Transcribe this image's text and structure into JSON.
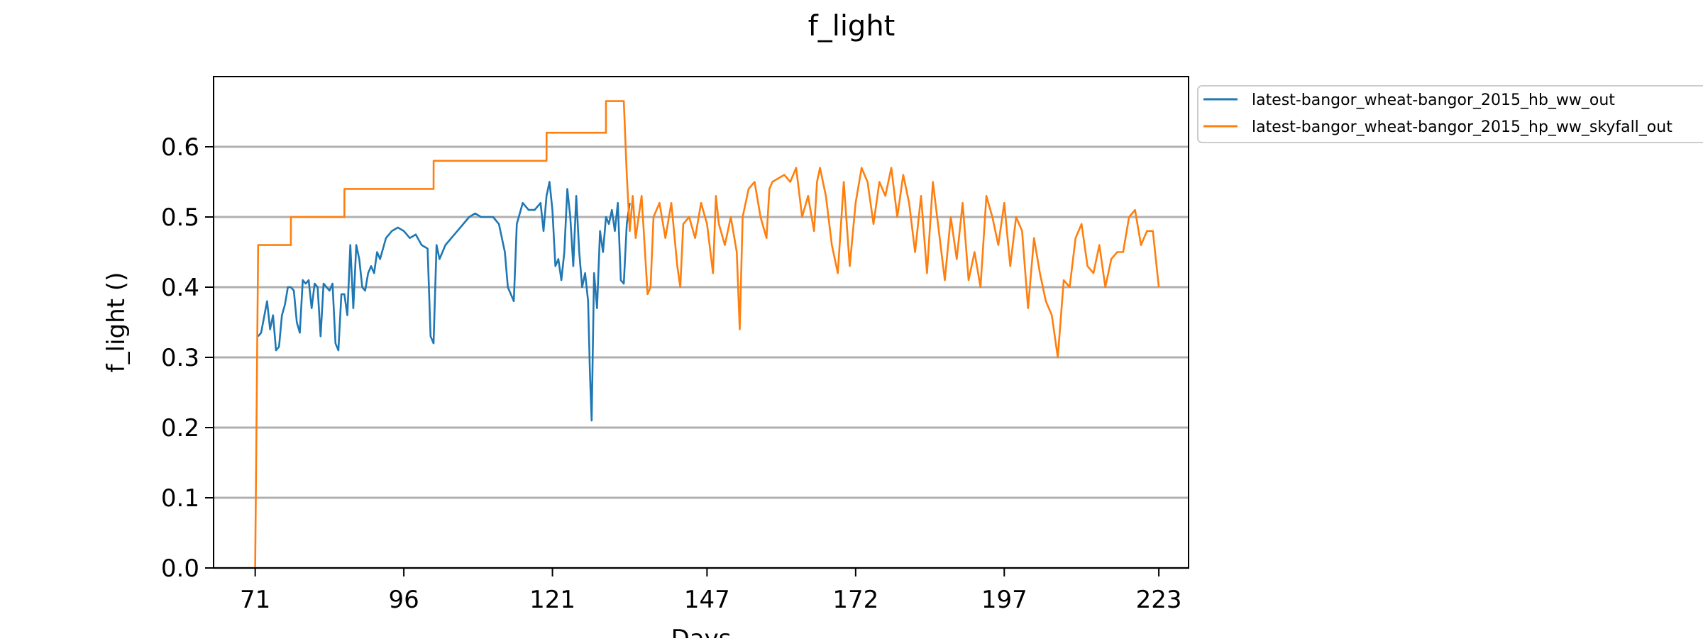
{
  "chart_data": {
    "type": "line",
    "title": "f_light",
    "xlabel": "Days",
    "ylabel": "f_light ()",
    "xlim": [
      64,
      228
    ],
    "ylim": [
      0,
      0.7
    ],
    "xticks": [
      71,
      96,
      121,
      147,
      172,
      197,
      223
    ],
    "yticks": [
      0.0,
      0.1,
      0.2,
      0.3,
      0.4,
      0.5,
      0.6
    ],
    "ytick_labels": [
      "0.0",
      "0.1",
      "0.2",
      "0.3",
      "0.4",
      "0.5",
      "0.6"
    ],
    "grid": "horizontal",
    "legend_position": "outside-top-right",
    "series": [
      {
        "name": "latest-bangor_wheat-bangor_2015_hb_ww_out",
        "color": "#1f77b4",
        "x": [
          71.5,
          72,
          73,
          73.5,
          74,
          74.5,
          75,
          75.5,
          76,
          76.5,
          77,
          77.5,
          78,
          78.5,
          79,
          79.5,
          80,
          80.5,
          81,
          81.5,
          82,
          82.5,
          83,
          83.5,
          84,
          84.5,
          85,
          85.5,
          86,
          86.5,
          87,
          87.5,
          88,
          88.5,
          89,
          89.5,
          90,
          90.5,
          91,
          91.5,
          92,
          93,
          94,
          95,
          96,
          97,
          98,
          99,
          100,
          100.5,
          101,
          101.5,
          102,
          103,
          104,
          105,
          106,
          107,
          108,
          109,
          110,
          111,
          112,
          113,
          113.5,
          114,
          114.5,
          115,
          116,
          117,
          118,
          119,
          119.5,
          120,
          120.5,
          121,
          121.5,
          122,
          122.5,
          123,
          123.5,
          124,
          124.5,
          125,
          125.5,
          126,
          126.5,
          127,
          127.3,
          127.6,
          128,
          128.5,
          129,
          129.5,
          130,
          130.5,
          131,
          131.5,
          132,
          132.5,
          133,
          133.5,
          134
        ],
        "y": [
          0.33,
          0.335,
          0.38,
          0.34,
          0.36,
          0.31,
          0.315,
          0.36,
          0.375,
          0.4,
          0.4,
          0.395,
          0.35,
          0.335,
          0.41,
          0.405,
          0.41,
          0.37,
          0.405,
          0.4,
          0.33,
          0.405,
          0.4,
          0.395,
          0.405,
          0.32,
          0.31,
          0.39,
          0.39,
          0.36,
          0.46,
          0.37,
          0.46,
          0.44,
          0.4,
          0.395,
          0.42,
          0.43,
          0.42,
          0.45,
          0.44,
          0.47,
          0.48,
          0.485,
          0.48,
          0.47,
          0.475,
          0.46,
          0.455,
          0.33,
          0.32,
          0.46,
          0.44,
          0.46,
          0.47,
          0.48,
          0.49,
          0.5,
          0.505,
          0.5,
          0.5,
          0.5,
          0.49,
          0.45,
          0.4,
          0.39,
          0.38,
          0.49,
          0.52,
          0.51,
          0.51,
          0.52,
          0.48,
          0.53,
          0.55,
          0.51,
          0.43,
          0.44,
          0.41,
          0.45,
          0.54,
          0.5,
          0.43,
          0.53,
          0.45,
          0.4,
          0.42,
          0.38,
          0.28,
          0.21,
          0.42,
          0.37,
          0.48,
          0.45,
          0.5,
          0.49,
          0.51,
          0.48,
          0.52,
          0.41,
          0.405,
          0.49,
          0.52
        ]
      },
      {
        "name": "latest-bangor_wheat-bangor_2015_hp_ww_skyfall_out",
        "color": "#ff7f0e",
        "x": [
          71,
          71.5,
          77,
          77.01,
          86,
          86.01,
          101,
          101.01,
          120,
          120.01,
          130,
          130.01,
          133,
          133.5,
          134,
          134.5,
          135,
          136,
          137,
          137.5,
          138,
          139,
          140,
          141,
          142,
          142.5,
          143,
          144,
          145,
          146,
          147,
          148,
          148.5,
          149,
          150,
          151,
          152,
          152.5,
          153,
          154,
          155,
          156,
          157,
          157.5,
          158,
          159,
          160,
          161,
          162,
          163,
          164,
          165,
          165.5,
          166,
          167,
          168,
          169,
          170,
          171,
          172,
          173,
          174,
          175,
          176,
          177,
          178,
          179,
          180,
          181,
          182,
          183,
          184,
          185,
          186,
          187,
          188,
          189,
          190,
          191,
          192,
          193,
          194,
          195,
          196,
          197,
          198,
          199,
          200,
          201,
          202,
          203,
          204,
          205,
          206,
          207,
          208,
          209,
          210,
          211,
          212,
          213,
          214,
          215,
          216,
          217,
          218,
          219,
          220,
          221,
          222,
          223
        ],
        "y": [
          0.0,
          0.46,
          0.46,
          0.5,
          0.5,
          0.54,
          0.54,
          0.58,
          0.58,
          0.62,
          0.62,
          0.665,
          0.665,
          0.56,
          0.48,
          0.53,
          0.47,
          0.53,
          0.39,
          0.4,
          0.5,
          0.52,
          0.47,
          0.52,
          0.43,
          0.4,
          0.49,
          0.5,
          0.47,
          0.52,
          0.49,
          0.42,
          0.53,
          0.49,
          0.46,
          0.5,
          0.45,
          0.34,
          0.5,
          0.54,
          0.55,
          0.5,
          0.47,
          0.54,
          0.55,
          0.555,
          0.56,
          0.55,
          0.57,
          0.5,
          0.53,
          0.48,
          0.55,
          0.57,
          0.53,
          0.46,
          0.42,
          0.55,
          0.43,
          0.52,
          0.57,
          0.55,
          0.49,
          0.55,
          0.53,
          0.57,
          0.5,
          0.56,
          0.52,
          0.45,
          0.53,
          0.42,
          0.55,
          0.48,
          0.41,
          0.5,
          0.44,
          0.52,
          0.41,
          0.45,
          0.4,
          0.53,
          0.5,
          0.46,
          0.52,
          0.43,
          0.5,
          0.48,
          0.37,
          0.47,
          0.42,
          0.38,
          0.36,
          0.3,
          0.41,
          0.4,
          0.47,
          0.49,
          0.43,
          0.42,
          0.46,
          0.4,
          0.44,
          0.45,
          0.45,
          0.5,
          0.51,
          0.46,
          0.48,
          0.48,
          0.4
        ]
      }
    ]
  }
}
